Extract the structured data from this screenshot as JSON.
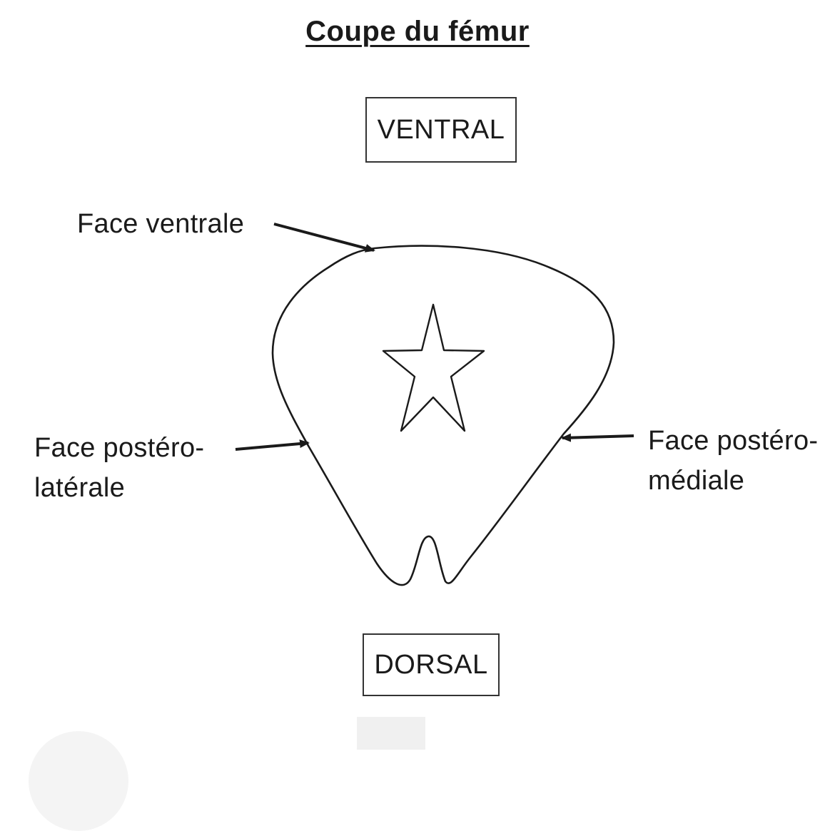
{
  "title": "Coupe du fémur",
  "orientation": {
    "top": "VENTRAL",
    "bottom": "DORSAL"
  },
  "labels": {
    "face_ventrale": "Face ventrale",
    "face_postero_laterale": [
      "Face postéro-",
      "latérale"
    ],
    "face_postero_mediale": [
      "Face postéro-",
      "médiale"
    ]
  },
  "symbols": {
    "center_marker": "star-icon"
  },
  "colors": {
    "ink": "#1a1a1a",
    "background": "#ffffff"
  }
}
